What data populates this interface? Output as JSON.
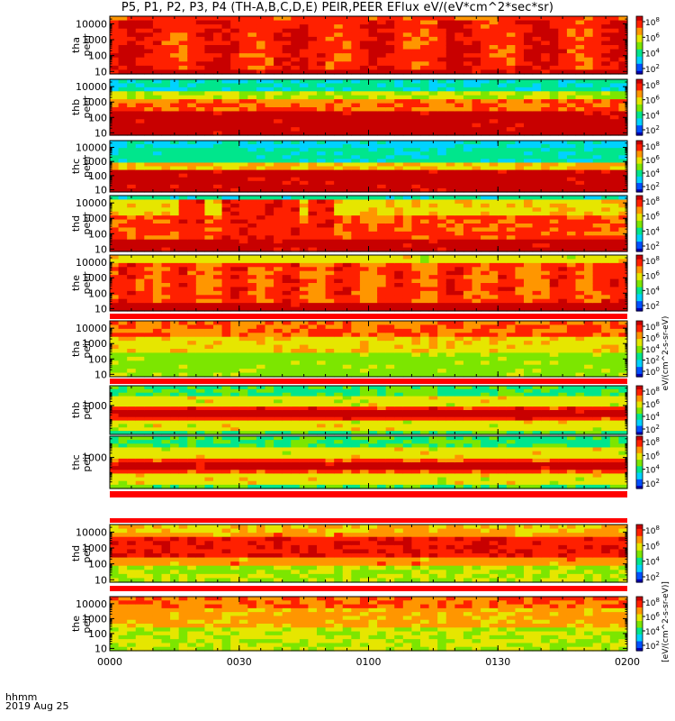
{
  "title": "P5, P1, P2, P3, P4 (TH-A,B,C,D,E) PEIR,PEER EFlux eV/(eV*cm^2*sec*sr)",
  "footer": {
    "label": "hhmm",
    "date": "2019 Aug 25"
  },
  "chart_data": {
    "type": "heatmap",
    "xaxis": {
      "ticks": [
        "0000",
        "0030",
        "0100",
        "0130",
        "0200"
      ],
      "range": [
        "00:00",
        "02:00"
      ]
    },
    "colorbar_tick_labels": [
      "10^8",
      "10^6",
      "10^4",
      "10^2",
      "10^0"
    ],
    "colorbar_labels": {
      "electron": "eV/(cm^2-s-sr-eV)",
      "ion": "[eV/(cm^2-s-sr-eV)]"
    },
    "colors": {
      "scale": [
        "#0000b4",
        "#0050ff",
        "#00d2ff",
        "#00e68c",
        "#7ce600",
        "#e6e600",
        "#ff9600",
        "#ff2000",
        "#c80000"
      ],
      "border": "#ff0000"
    },
    "panels": [
      {
        "probe": "tha",
        "species": "peer",
        "ylabel": [
          "tha",
          "peer"
        ],
        "yticks": [
          "10",
          "100",
          "1000",
          "10000"
        ],
        "ylog": true,
        "yrange": [
          7,
          30000
        ],
        "colorbar_ticks": [
          "10^8",
          "10^6",
          "10^4",
          "10^2"
        ]
      },
      {
        "probe": "thb",
        "species": "peer",
        "ylabel": [
          "thb",
          "peer"
        ],
        "yticks": [
          "10",
          "100",
          "1000",
          "10000"
        ],
        "ylog": true,
        "yrange": [
          7,
          30000
        ],
        "colorbar_ticks": [
          "10^8",
          "10^6",
          "10^4",
          "10^2"
        ]
      },
      {
        "probe": "thc",
        "species": "peer",
        "ylabel": [
          "thc",
          "peer"
        ],
        "yticks": [
          "10",
          "100",
          "1000",
          "10000"
        ],
        "ylog": true,
        "yrange": [
          7,
          30000
        ],
        "colorbar_ticks": [
          "10^8",
          "10^6",
          "10^4",
          "10^2"
        ]
      },
      {
        "probe": "thd",
        "species": "peer",
        "ylabel": [
          "thd",
          "peer"
        ],
        "yticks": [
          "10",
          "100",
          "1000",
          "10000"
        ],
        "ylog": true,
        "yrange": [
          7,
          30000
        ],
        "colorbar_ticks": [
          "10^8",
          "10^6",
          "10^4",
          "10^2"
        ]
      },
      {
        "probe": "the",
        "species": "peer",
        "ylabel": [
          "the",
          "peer"
        ],
        "yticks": [
          "10",
          "100",
          "1000",
          "10000"
        ],
        "ylog": true,
        "yrange": [
          7,
          30000
        ],
        "colorbar_ticks": [
          "10^8",
          "10^6",
          "10^4",
          "10^2"
        ]
      },
      {
        "probe": "tha",
        "species": "peir",
        "ylabel": [
          "tha",
          "peir"
        ],
        "yticks": [
          "10",
          "100",
          "1000",
          "10000"
        ],
        "ylog": true,
        "yrange": [
          7,
          30000
        ],
        "colorbar_ticks": [
          "10^8",
          "10^6",
          "10^4",
          "10^2",
          "10^0"
        ]
      },
      {
        "probe": "thb",
        "species": "peir",
        "ylabel": [
          "thb",
          "peir"
        ],
        "yticks": [
          "1000"
        ],
        "ylog": true,
        "yrange": [
          7,
          30000
        ],
        "colorbar_ticks": [
          "10^8",
          "10^6",
          "10^4",
          "10^2"
        ]
      },
      {
        "probe": "thc",
        "species": "peir",
        "ylabel": [
          "thc",
          "peir"
        ],
        "yticks": [
          "1000"
        ],
        "ylog": true,
        "yrange": [
          7,
          30000
        ],
        "colorbar_ticks": [
          "10^8",
          "10^6",
          "10^4",
          "10^2"
        ]
      },
      {
        "probe": "thd",
        "species": "peir",
        "ylabel": [
          "thd",
          "peir"
        ],
        "yticks": [
          "10",
          "100",
          "1000",
          "10000"
        ],
        "ylog": true,
        "yrange": [
          7,
          30000
        ],
        "colorbar_ticks": [
          "10^8",
          "10^6",
          "10^4",
          "10^2"
        ]
      },
      {
        "probe": "the",
        "species": "peir",
        "ylabel": [
          "the",
          "peir"
        ],
        "yticks": [
          "10",
          "100",
          "1000",
          "10000"
        ],
        "ylog": true,
        "yrange": [
          7,
          30000
        ],
        "colorbar_ticks": [
          "10^8",
          "10^6",
          "10^4",
          "10^2"
        ]
      }
    ]
  }
}
